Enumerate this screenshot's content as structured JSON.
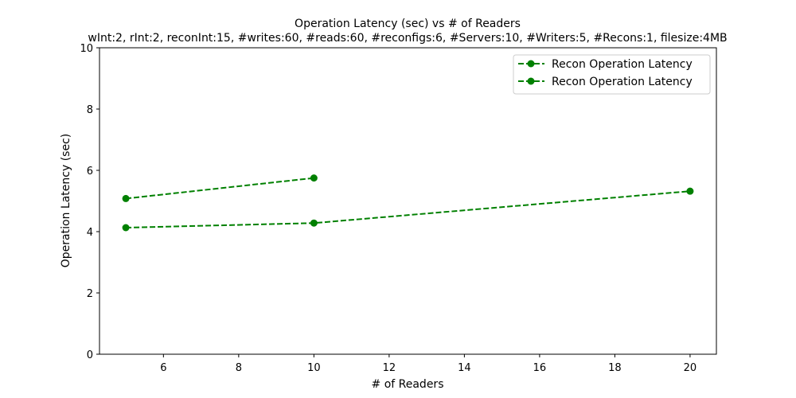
{
  "chart_data": {
    "type": "line",
    "title": "Operation Latency (sec) vs # of Readers",
    "subtitle": "wInt:2, rInt:2, reconInt:15, #writes:60, #reads:60, #reconfigs:6, #Servers:10, #Writers:5, #Recons:1, filesize:4MB",
    "xlabel": "# of Readers",
    "ylabel": "Operation Latency (sec)",
    "xlim": [
      4.3,
      20.7
    ],
    "ylim": [
      0,
      10
    ],
    "xticks": [
      6,
      8,
      10,
      12,
      14,
      16,
      18,
      20
    ],
    "yticks": [
      0,
      2,
      4,
      6,
      8,
      10
    ],
    "grid": false,
    "legend_position": "top-right",
    "series": [
      {
        "name": "Recon Operation Latency",
        "color": "#008000",
        "line_style": "dashed",
        "marker": "circle",
        "x": [
          5,
          10
        ],
        "y": [
          5.08,
          5.75
        ]
      },
      {
        "name": "Recon Operation Latency",
        "color": "#008000",
        "line_style": "dashed",
        "marker": "circle",
        "x": [
          5,
          10,
          20
        ],
        "y": [
          4.13,
          4.28,
          5.32
        ]
      }
    ]
  }
}
